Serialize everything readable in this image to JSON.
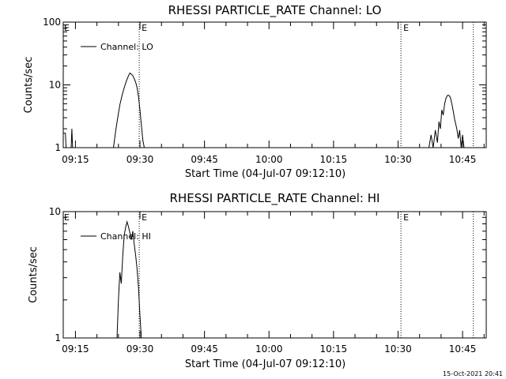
{
  "footer": {
    "timestamp": "15-Oct-2021 20:41"
  },
  "chart_data": [
    {
      "type": "line",
      "title": "RHESSI PARTICLE_RATE Channel: LO",
      "xlabel": "Start Time (04-Jul-07 09:12:10)",
      "ylabel": "Counts/sec",
      "yscale": "log",
      "ylim": [
        1,
        100
      ],
      "xlim": [
        "09:12:10",
        "10:50:30"
      ],
      "x_ticks": [
        "09:15",
        "09:30",
        "09:45",
        "10:00",
        "10:15",
        "10:30",
        "10:45"
      ],
      "y_ticks": [
        "1",
        "10",
        "100"
      ],
      "legend": {
        "placement": "top-left",
        "entries": [
          "Channel: LO"
        ]
      },
      "markers": [
        {
          "time": "09:29:50",
          "label": "E"
        },
        {
          "time": "10:30:40",
          "label": "E"
        },
        {
          "time": "10:47:30",
          "label": ""
        }
      ],
      "series": [
        {
          "name": "Channel: LO",
          "segments": [
            {
              "x": [
                "09:12:10",
                "09:12:40",
                "09:12:50",
                "09:13:10",
                "09:13:30"
              ],
              "y": [
                1.7,
                1.7,
                1.0,
                1.0,
                1.0
              ]
            },
            {
              "x": [
                "09:14:00",
                "09:14:10",
                "09:14:20"
              ],
              "y": [
                1.0,
                2.0,
                1.0
              ]
            },
            {
              "x": [
                "09:23:50",
                "09:24:20",
                "09:24:50",
                "09:25:20",
                "09:25:50",
                "09:26:20",
                "09:26:50",
                "09:27:20",
                "09:27:40",
                "09:28:00",
                "09:28:20",
                "09:28:40",
                "09:29:00",
                "09:29:20",
                "09:29:40",
                "09:30:00",
                "09:30:20",
                "09:30:40",
                "09:31:00"
              ],
              "y": [
                1.0,
                1.8,
                3.0,
                4.8,
                6.8,
                9.0,
                11.5,
                14.0,
                15.5,
                14.8,
                14.0,
                12.5,
                11.0,
                9.0,
                6.5,
                4.0,
                2.3,
                1.3,
                1.0
              ]
            },
            {
              "x": [
                "10:37:10",
                "10:37:40",
                "10:38:10",
                "10:38:40",
                "10:39:10",
                "10:39:30",
                "10:39:50",
                "10:40:10",
                "10:40:30",
                "10:40:50",
                "10:41:10",
                "10:41:30",
                "10:41:50",
                "10:42:10",
                "10:42:30",
                "10:42:50",
                "10:43:10",
                "10:43:40",
                "10:44:00",
                "10:44:20",
                "10:44:40",
                "10:45:00",
                "10:45:20"
              ],
              "y": [
                1.0,
                1.6,
                1.0,
                1.9,
                1.2,
                2.6,
                2.0,
                4.0,
                3.3,
                5.0,
                6.2,
                6.8,
                6.8,
                6.3,
                5.0,
                3.8,
                2.8,
                2.0,
                1.4,
                1.9,
                1.0,
                1.6,
                1.0
              ]
            }
          ]
        }
      ]
    },
    {
      "type": "line",
      "title": "RHESSI PARTICLE_RATE Channel: HI",
      "xlabel": "Start Time (04-Jul-07 09:12:10)",
      "ylabel": "Counts/sec",
      "yscale": "log",
      "ylim": [
        1,
        10
      ],
      "xlim": [
        "09:12:10",
        "10:50:30"
      ],
      "x_ticks": [
        "09:15",
        "09:30",
        "09:45",
        "10:00",
        "10:15",
        "10:30",
        "10:45"
      ],
      "y_ticks": [
        "1",
        "10"
      ],
      "legend": {
        "placement": "top-left",
        "entries": [
          "Channel: HI"
        ]
      },
      "markers": [
        {
          "time": "09:29:50",
          "label": "E"
        },
        {
          "time": "10:30:40",
          "label": "E"
        },
        {
          "time": "10:47:30",
          "label": ""
        }
      ],
      "series": [
        {
          "name": "Channel: HI",
          "segments": [
            {
              "x": [
                "09:24:40",
                "09:25:00",
                "09:25:20",
                "09:25:40",
                "09:26:00",
                "09:26:20",
                "09:26:40",
                "09:27:00",
                "09:27:20",
                "09:27:40",
                "09:28:00",
                "09:28:20",
                "09:28:40",
                "09:29:00",
                "09:29:20",
                "09:29:40",
                "09:30:00",
                "09:30:20"
              ],
              "y": [
                1.0,
                2.0,
                3.3,
                2.7,
                4.5,
                6.5,
                7.5,
                8.3,
                7.6,
                6.8,
                6.0,
                7.0,
                5.5,
                4.5,
                3.5,
                2.5,
                1.5,
                1.0
              ]
            }
          ]
        }
      ]
    }
  ]
}
